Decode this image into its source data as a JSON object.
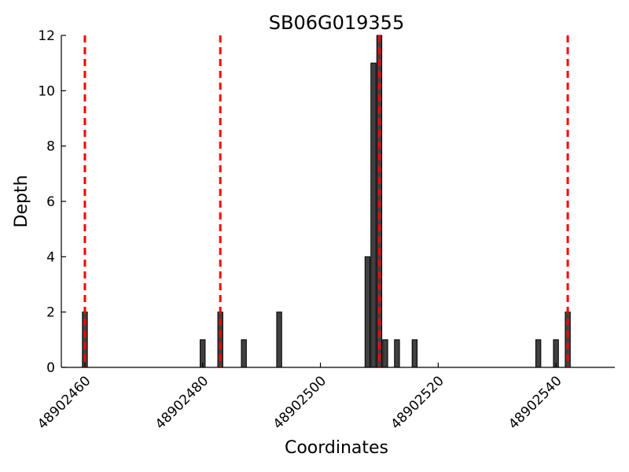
{
  "chart_data": {
    "type": "bar",
    "title": "SB06G019355",
    "xlabel": "Coordinates",
    "ylabel": "Depth",
    "xlim": [
      48902456,
      48902550
    ],
    "ylim": [
      0,
      12
    ],
    "xticks": [
      48902460,
      48902480,
      48902500,
      48902520,
      48902540
    ],
    "xtick_labels": [
      "48902460",
      "48902480",
      "48902500",
      "48902520",
      "48902540"
    ],
    "yticks": [
      0,
      2,
      4,
      6,
      8,
      10,
      12
    ],
    "ytick_labels": [
      "0",
      "2",
      "4",
      "6",
      "8",
      "10",
      "12"
    ],
    "bars": [
      {
        "x": 48902460,
        "value": 2
      },
      {
        "x": 48902480,
        "value": 1
      },
      {
        "x": 48902483,
        "value": 2
      },
      {
        "x": 48902487,
        "value": 1
      },
      {
        "x": 48902493,
        "value": 2
      },
      {
        "x": 48902508,
        "value": 4
      },
      {
        "x": 48902509,
        "value": 11
      },
      {
        "x": 48902510,
        "value": 12
      },
      {
        "x": 48902511,
        "value": 1
      },
      {
        "x": 48902513,
        "value": 1
      },
      {
        "x": 48902516,
        "value": 1
      },
      {
        "x": 48902537,
        "value": 1
      },
      {
        "x": 48902540,
        "value": 1
      },
      {
        "x": 48902542,
        "value": 2
      }
    ],
    "vertical_lines": [
      48902460,
      48902483,
      48902510,
      48902542
    ],
    "vertical_line_color": "#ff0000",
    "bar_color": "#404040",
    "grid": false
  }
}
